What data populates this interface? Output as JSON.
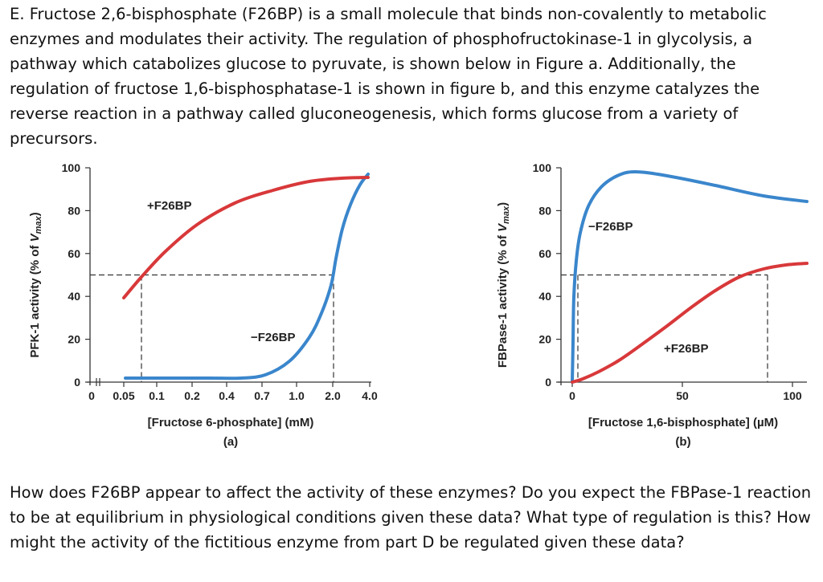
{
  "intro_text": "E. Fructose 2,6-bisphosphate (F26BP) is a small molecule that binds non-covalently to metabolic enzymes and modulates their activity.  The regulation of phosphofructokinase-1 in glycolysis, a pathway which catabolizes glucose to pyruvate, is shown below in Figure a.  Additionally, the regulation of fructose 1,6-bisphosphatase-1 is shown in figure b, and this enzyme catalyzes the reverse reaction in a pathway called gluconeogenesis, which forms glucose from a variety of precursors.",
  "question_text": "How does F26BP appear to affect the activity of these enzymes?  Do you expect the FBPase-1 reaction to be at equilibrium in physiological conditions given these data? What type of regulation is this?  How might the activity of the fictitious enzyme from part D be regulated given these data?",
  "colors": {
    "red": "#d8383a",
    "blue": "#3a86cc",
    "axis": "#333333"
  },
  "chart_data": [
    {
      "type": "line",
      "panel_label": "(a)",
      "xlabel": "[Fructose 6-phosphate] (mM)",
      "ylabel": {
        "main": "PFK-1 activity (% of ",
        "italic": "V",
        "sub": "max",
        "tail": ")"
      },
      "x_ticks": [
        "0",
        "0.05",
        "0.1",
        "0.2",
        "0.4",
        "0.7",
        "1.0",
        "2.0",
        "4.0"
      ],
      "y_ticks": [
        "0",
        "20",
        "40",
        "60",
        "80",
        "100"
      ],
      "ylim": [
        0,
        100
      ],
      "x_scale": "categorical",
      "grid": false,
      "half_max_marker": {
        "y": 50
      },
      "series": [
        {
          "name": "+F26BP",
          "color": "#d8383a",
          "points": [
            [
              0.04,
              40
            ],
            [
              0.05,
              50
            ],
            [
              0.1,
              63
            ],
            [
              0.2,
              78
            ],
            [
              0.4,
              90
            ],
            [
              0.7,
              96
            ],
            [
              1.0,
              97.5
            ],
            [
              2.0,
              98
            ],
            [
              4.0,
              98
            ]
          ]
        },
        {
          "name": "−F26BP",
          "color": "#3a86cc",
          "points": [
            [
              0.04,
              2
            ],
            [
              0.1,
              2
            ],
            [
              0.2,
              2
            ],
            [
              0.4,
              2
            ],
            [
              0.7,
              2
            ],
            [
              1.0,
              7
            ],
            [
              1.3,
              16
            ],
            [
              1.5,
              27
            ],
            [
              1.7,
              38
            ],
            [
              2.0,
              50
            ],
            [
              2.2,
              65
            ],
            [
              2.5,
              80
            ],
            [
              3.0,
              90
            ],
            [
              4.0,
              98
            ]
          ]
        }
      ]
    },
    {
      "type": "line",
      "panel_label": "(b)",
      "xlabel": "[Fructose 1,6-bisphosphate] (µM)",
      "ylabel": {
        "main": "FBPase-1 activity (% of ",
        "italic": "V",
        "sub": "max",
        "tail": ")"
      },
      "x_ticks": [
        "0",
        "50",
        "100"
      ],
      "y_ticks": [
        "0",
        "20",
        "40",
        "60",
        "80",
        "100"
      ],
      "xlim": [
        0,
        100
      ],
      "ylim": [
        0,
        100
      ],
      "grid": false,
      "half_max_marker": {
        "y": 50
      },
      "series": [
        {
          "name": "−F26BP",
          "color": "#3a86cc",
          "points": [
            [
              0,
              0
            ],
            [
              0.5,
              20
            ],
            [
              1,
              40
            ],
            [
              2,
              62
            ],
            [
              4,
              78
            ],
            [
              8,
              88
            ],
            [
              15,
              95
            ],
            [
              25,
              99
            ],
            [
              30,
              100
            ],
            [
              50,
              98
            ],
            [
              70,
              94
            ],
            [
              100,
              86
            ]
          ]
        },
        {
          "name": "+F26BP",
          "color": "#d8383a",
          "points": [
            [
              0,
              0
            ],
            [
              10,
              3
            ],
            [
              20,
              8
            ],
            [
              30,
              15
            ],
            [
              40,
              22
            ],
            [
              50,
              29
            ],
            [
              60,
              36
            ],
            [
              70,
              42
            ],
            [
              80,
              47
            ],
            [
              90,
              50
            ],
            [
              100,
              54
            ],
            [
              110,
              56
            ]
          ]
        }
      ]
    }
  ]
}
